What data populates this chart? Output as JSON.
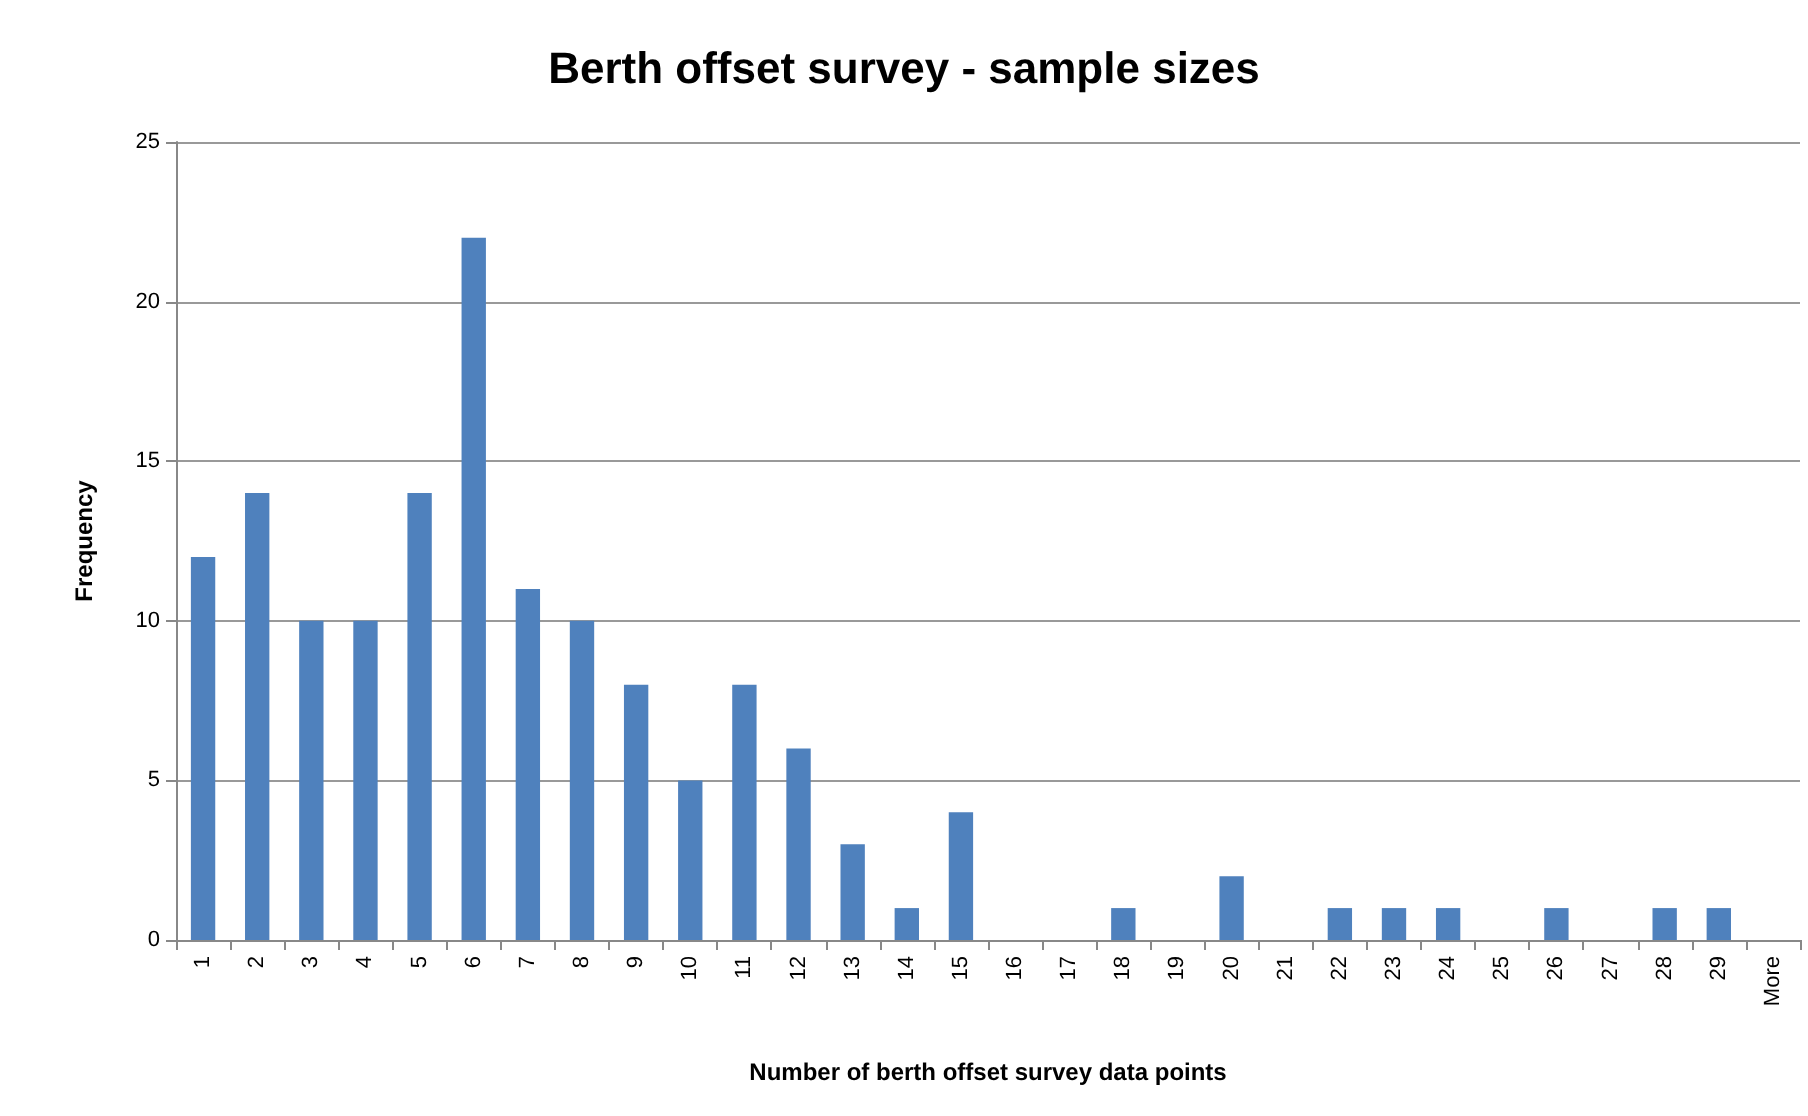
{
  "chart_data": {
    "type": "bar",
    "title": "Berth offset survey - sample sizes",
    "xlabel": "Number of berth offset survey data points",
    "ylabel": "Frequency",
    "categories": [
      "1",
      "2",
      "3",
      "4",
      "5",
      "6",
      "7",
      "8",
      "9",
      "10",
      "11",
      "12",
      "13",
      "14",
      "15",
      "16",
      "17",
      "18",
      "19",
      "20",
      "21",
      "22",
      "23",
      "24",
      "25",
      "26",
      "27",
      "28",
      "29",
      "More"
    ],
    "values": [
      12,
      14,
      10,
      10,
      14,
      22,
      11,
      10,
      8,
      5,
      8,
      6,
      3,
      1,
      4,
      0,
      0,
      1,
      0,
      2,
      0,
      1,
      1,
      1,
      0,
      1,
      0,
      1,
      1,
      0
    ],
    "color": "#4f81bd",
    "ylim": [
      0,
      25
    ],
    "yticks": [
      0,
      5,
      10,
      15,
      20,
      25
    ],
    "grid": "y"
  }
}
